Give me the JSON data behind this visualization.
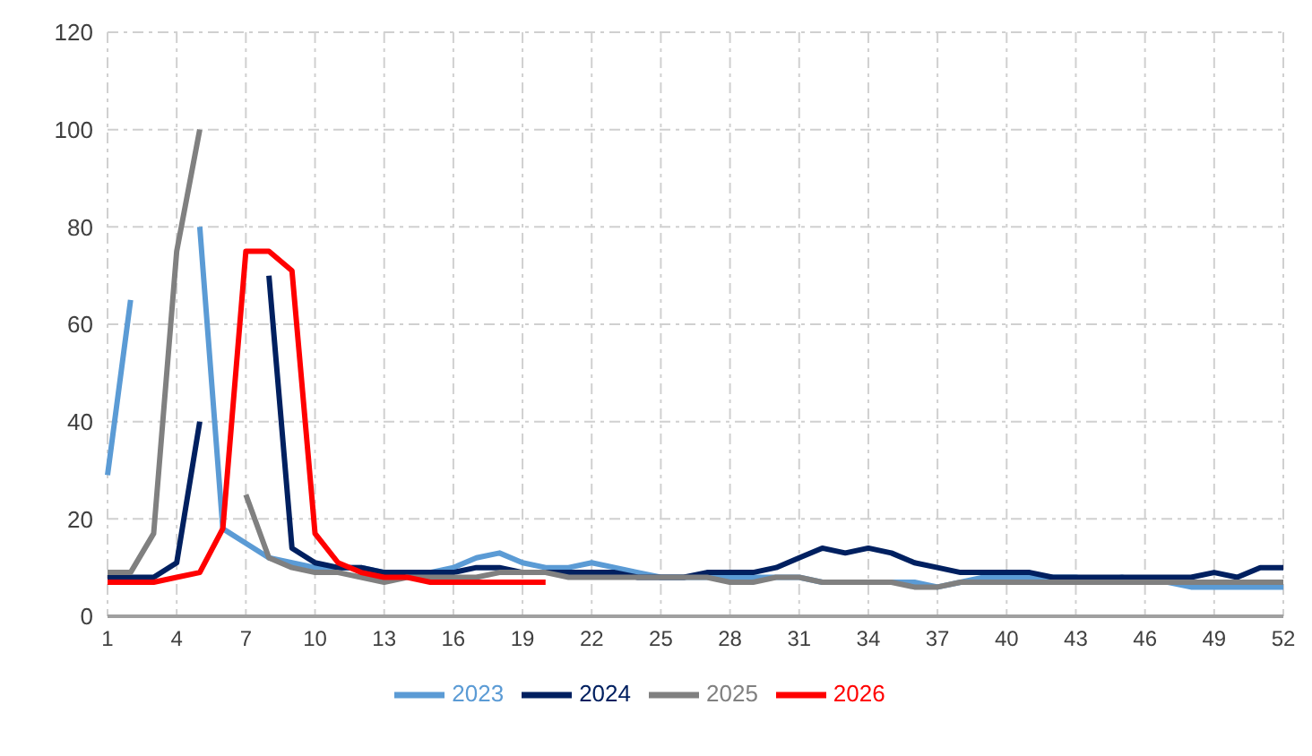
{
  "chart_data": {
    "type": "line",
    "categories": [
      "1",
      null,
      null,
      "4",
      null,
      null,
      "7",
      null,
      null,
      "10",
      null,
      null,
      "13",
      null,
      null,
      "16",
      null,
      null,
      "19",
      null,
      null,
      "22",
      null,
      null,
      "25",
      null,
      null,
      "28",
      null,
      null,
      "31",
      null,
      null,
      "34",
      null,
      null,
      "37",
      null,
      null,
      "40",
      null,
      null,
      "43",
      null,
      null,
      "46",
      null,
      null,
      "49",
      null,
      null,
      "52"
    ],
    "ylim": [
      0,
      120
    ],
    "yticks": [
      0,
      20,
      40,
      60,
      80,
      100,
      120
    ],
    "grid": true,
    "legend": "bottom",
    "marker": "none",
    "series": [
      {
        "name": "2023",
        "color": "#5b9bd5",
        "values": [
          29,
          65,
          null,
          null,
          80,
          18,
          15,
          12,
          11,
          10,
          10,
          10,
          9,
          9,
          9,
          10,
          12,
          13,
          11,
          10,
          10,
          11,
          10,
          9,
          8,
          8,
          8,
          8,
          8,
          8,
          8,
          7,
          7,
          7,
          7,
          7,
          6,
          7,
          8,
          8,
          8,
          8,
          8,
          7,
          8,
          7,
          7,
          6,
          6,
          6,
          6,
          6
        ]
      },
      {
        "name": "2024",
        "color": "#002060",
        "values": [
          8,
          8,
          8,
          11,
          40,
          null,
          null,
          70,
          14,
          11,
          10,
          10,
          9,
          9,
          9,
          9,
          10,
          10,
          9,
          9,
          9,
          9,
          9,
          8,
          8,
          8,
          9,
          9,
          9,
          10,
          12,
          14,
          13,
          14,
          13,
          11,
          10,
          9,
          9,
          9,
          9,
          8,
          8,
          8,
          8,
          8,
          8,
          8,
          9,
          8,
          10,
          10
        ]
      },
      {
        "name": "2025",
        "color": "#808080",
        "values": [
          9,
          9,
          17,
          75,
          100,
          null,
          25,
          12,
          10,
          9,
          9,
          8,
          7,
          8,
          8,
          8,
          8,
          9,
          9,
          9,
          8,
          8,
          8,
          8,
          8,
          8,
          8,
          7,
          7,
          8,
          8,
          7,
          7,
          7,
          7,
          6,
          6,
          7,
          7,
          7,
          7,
          7,
          7,
          7,
          7,
          7,
          7,
          7,
          7,
          7,
          7,
          7
        ]
      },
      {
        "name": "2026",
        "color": "#ff0000",
        "values": [
          7,
          7,
          7,
          8,
          9,
          18,
          75,
          75,
          71,
          17,
          11,
          9,
          8,
          8,
          7,
          7,
          7,
          7,
          7,
          7,
          null,
          null,
          null,
          null,
          null,
          null,
          null,
          null,
          null,
          null,
          null,
          null,
          null,
          null,
          null,
          null,
          null,
          null,
          null,
          null,
          null,
          null,
          null,
          null,
          null,
          null,
          null,
          null,
          null,
          null,
          null,
          null
        ]
      }
    ]
  }
}
